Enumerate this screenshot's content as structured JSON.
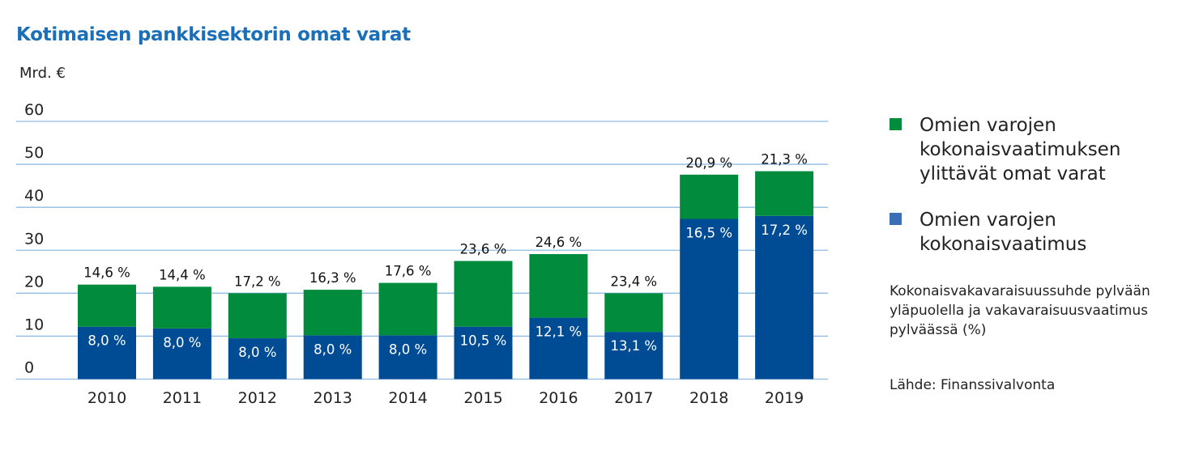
{
  "chart_data": {
    "type": "bar",
    "stacked": true,
    "title": "Kotimaisen pankkisektorin omat varat",
    "ylabel": "Mrd. €",
    "ylim": [
      0,
      60
    ],
    "yticks": [
      0,
      10,
      20,
      30,
      40,
      50,
      60
    ],
    "grid": true,
    "legend_position": "right",
    "categories": [
      "2010",
      "2011",
      "2012",
      "2013",
      "2014",
      "2015",
      "2016",
      "2017",
      "2018",
      "2019"
    ],
    "series": [
      {
        "name": "Omien varojen kokonaisvaatimus",
        "color": "#004c94",
        "values": [
          12.2,
          11.8,
          9.5,
          10.2,
          10.2,
          12.2,
          14.3,
          11.0,
          37.3,
          38.0
        ],
        "labels": [
          "8,0 %",
          "8,0 %",
          "8,0 %",
          "8,0 %",
          "8,0 %",
          "10,5 %",
          "12,1 %",
          "13,1 %",
          "16,5 %",
          "17,2 %"
        ]
      },
      {
        "name": "Omien varojen kokonaisvaatimuksen ylittävät omat varat",
        "color": "#008c3c",
        "values": [
          9.8,
          9.7,
          10.5,
          10.6,
          12.2,
          15.3,
          14.8,
          9.0,
          10.3,
          10.4
        ],
        "labels": [
          "14,6 %",
          "14,4 %",
          "17,2 %",
          "16,3 %",
          "17,6 %",
          "23,6 %",
          "24,6 %",
          "23,4 %",
          "20,9 %",
          "21,3 %"
        ]
      }
    ],
    "note": "Kokonaisvakavaraisuussuhde pylvään yläpuolella ja vakavaraisuusvaatimus pylväässä (%)",
    "source": "Lähde: Finanssivalvonta"
  },
  "colors": {
    "grid": "#8fbbe3",
    "title": "#1a6fb8"
  }
}
